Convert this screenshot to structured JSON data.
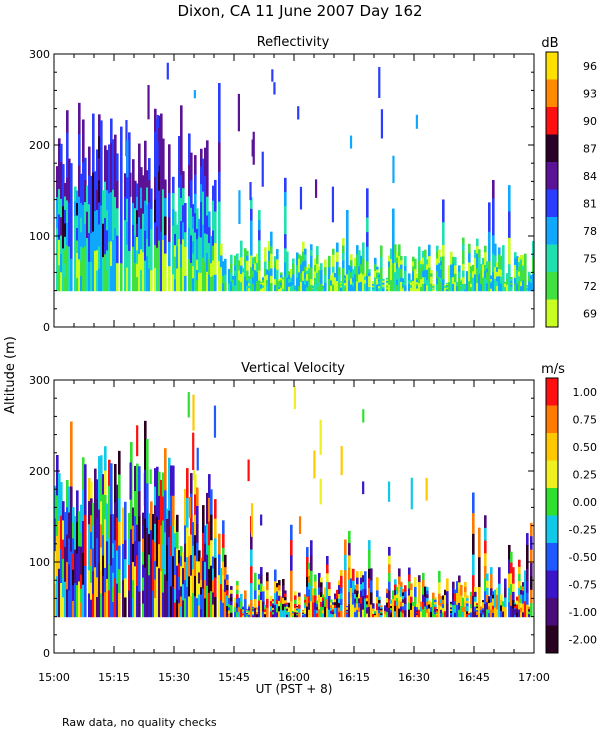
{
  "title": "Dixon, CA 11 June 2007  Day 162",
  "ylabel": "Altitude (m)",
  "xlabel": "UT  (PST + 8)",
  "footnote": "Raw data, no quality checks",
  "colors": {
    "axis": "#000000",
    "background": "#ffffff"
  },
  "chart_data": [
    {
      "type": "heatmap",
      "title": "Reflectivity",
      "units": "dB",
      "x_range": [
        "15:00",
        "17:00"
      ],
      "x_ticks": [
        "15:00",
        "15:15",
        "15:30",
        "15:45",
        "16:00",
        "16:15",
        "16:30",
        "16:45",
        "17:00"
      ],
      "ylim": [
        0,
        300
      ],
      "y_ticks": [
        0,
        100,
        200,
        300
      ],
      "colorbar": {
        "labels": [
          "96",
          "93",
          "90",
          "87",
          "84",
          "81",
          "78",
          "75",
          "72",
          "69"
        ],
        "colors": [
          "#ffe000",
          "#ff8a00",
          "#ff1010",
          "#2a0028",
          "#5a1296",
          "#2a3cff",
          "#10a8ff",
          "#20e0b0",
          "#40e040",
          "#c8ff20"
        ]
      }
    },
    {
      "type": "heatmap",
      "title": "Vertical Velocity",
      "units": "m/s",
      "x_range": [
        "15:00",
        "17:00"
      ],
      "x_ticks": [
        "15:00",
        "15:15",
        "15:30",
        "15:45",
        "16:00",
        "16:15",
        "16:30",
        "16:45",
        "17:00"
      ],
      "ylim": [
        0,
        300
      ],
      "y_ticks": [
        0,
        100,
        200,
        300
      ],
      "colorbar": {
        "labels": [
          "1.00",
          "0.75",
          "0.50",
          "0.25",
          "0.00",
          "-0.25",
          "-0.50",
          "-0.75",
          "-1.00",
          "-2.00"
        ],
        "colors": [
          "#ff1010",
          "#ff7a00",
          "#ffc800",
          "#f0f020",
          "#30e030",
          "#10c8e8",
          "#1e5aff",
          "#3a16c8",
          "#4a0c78",
          "#2a0020"
        ]
      }
    }
  ]
}
